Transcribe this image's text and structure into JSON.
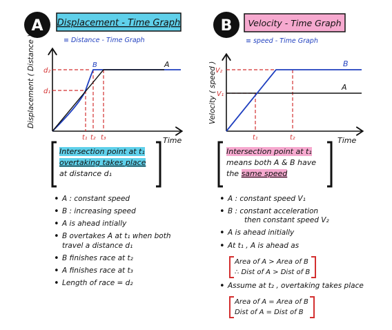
{
  "panel_a": {
    "letter": "A",
    "title": "Displacement - Time Graph",
    "subtitle": "≡ Distance - Time Graph",
    "y_label": "Displacement ( Distance )",
    "x_label": "Time",
    "tick_d2": "d₂",
    "tick_d1": "d₁",
    "label_b": "B",
    "label_a": "A",
    "tick_t1": "t₁",
    "tick_t2": "t₂",
    "tick_t3": "t₃",
    "note_part1": "Intersection point at t₁",
    "note_part2": "overtaking takes place",
    "note_part3": "at distance d₁",
    "bullets": [
      "A : constant speed",
      "B : increasing speed",
      "A is ahead intially",
      "B overtakes A at t₁ when both",
      "travel a distance d₁",
      "B finishes race at t₂",
      "A finishes race at t₃",
      "Length of race = d₂"
    ]
  },
  "panel_b": {
    "letter": "B",
    "title": "Velocity - Time Graph",
    "subtitle": "≡ speed - Time Graph",
    "y_label": "Velocity ( speed )",
    "x_label": "Time",
    "tick_v2": "V₂",
    "tick_v1": "V₁",
    "label_b": "B",
    "label_a": "A",
    "tick_t1": "t₁",
    "tick_t2": "t₂",
    "note_part1": "Intersection point at t₁",
    "note_part2": "means both A & B have",
    "note_part3": "the",
    "note_part4": "same speed",
    "bullets": [
      "A : constant speed V₁",
      "B : constant acceleration",
      "then constant speed V₂",
      "A is ahead initially",
      "At t₁ , A is ahead as",
      "Assume at t₂ , overtaking takes place"
    ],
    "ineq1_line1": "Area of A > Area of B",
    "ineq1_line2": "∴ Dist of A > Dist of B",
    "ineq2_line1": "Area of A = Area of B",
    "ineq2_line2": "Dist of A = Dist of B"
  },
  "colors": {
    "blue": "#1f3fbf",
    "red": "#d32f2f",
    "cyan": "#5fd0ea",
    "pink": "#f6a9cf",
    "ink": "#111111"
  }
}
